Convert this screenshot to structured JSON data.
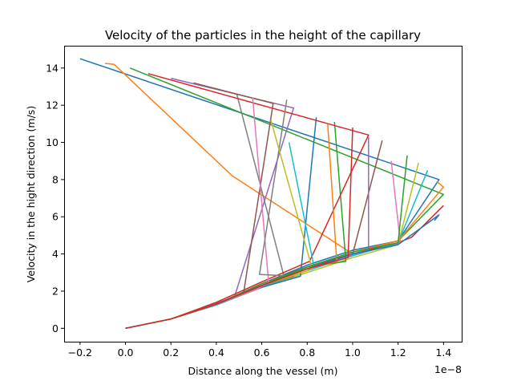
{
  "chart_data": {
    "type": "line",
    "title": "Velocity of the particles in the height of the capillary",
    "xlabel": "Distance along the vessel (m)",
    "ylabel": "Velocity in the hight direction (m/s)",
    "x_offset_text": "1e−8",
    "xlim": [
      -0.27,
      1.48
    ],
    "ylim": [
      -0.72,
      15.2
    ],
    "x_scale_factor": 1e-08,
    "xticks": [
      -0.2,
      0.0,
      0.2,
      0.4,
      0.6,
      0.8,
      1.0,
      1.2,
      1.4
    ],
    "xtick_labels": [
      "−0.2",
      "0.0",
      "0.2",
      "0.4",
      "0.6",
      "0.8",
      "1.0",
      "1.2",
      "1.4"
    ],
    "yticks": [
      0,
      2,
      4,
      6,
      8,
      10,
      12,
      14
    ],
    "ytick_labels": [
      "0",
      "2",
      "4",
      "6",
      "8",
      "10",
      "12",
      "14"
    ],
    "grid": false,
    "legend": "none",
    "series": [
      {
        "color": "#1f77b4",
        "points": [
          [
            0,
            0
          ],
          [
            0.2,
            0.5
          ],
          [
            0.4,
            1.3
          ],
          [
            0.6,
            2.4
          ],
          [
            0.8,
            3.4
          ],
          [
            1.0,
            4.2
          ],
          [
            1.2,
            4.7
          ],
          [
            1.38,
            8.0
          ],
          [
            -0.2,
            14.5
          ]
        ]
      },
      {
        "color": "#ff7f0e",
        "points": [
          [
            0,
            0
          ],
          [
            0.2,
            0.5
          ],
          [
            0.4,
            1.3
          ],
          [
            0.6,
            2.3
          ],
          [
            0.8,
            3.3
          ],
          [
            1.0,
            4.1
          ],
          [
            1.2,
            4.7
          ],
          [
            1.0,
            4.0
          ],
          [
            0.47,
            8.2
          ],
          [
            -0.05,
            14.2
          ],
          [
            -0.09,
            14.25
          ]
        ]
      },
      {
        "color": "#2ca02c",
        "points": [
          [
            0,
            0
          ],
          [
            0.2,
            0.5
          ],
          [
            0.4,
            1.3
          ],
          [
            0.6,
            2.3
          ],
          [
            0.8,
            3.3
          ],
          [
            1.0,
            4.1
          ],
          [
            1.2,
            4.7
          ],
          [
            1.4,
            7.2
          ],
          [
            0.02,
            14.0
          ]
        ]
      },
      {
        "color": "#d62728",
        "points": [
          [
            0,
            0
          ],
          [
            0.2,
            0.5
          ],
          [
            0.4,
            1.3
          ],
          [
            0.6,
            2.4
          ],
          [
            0.8,
            3.3
          ],
          [
            1.0,
            4.0
          ],
          [
            1.2,
            4.6
          ],
          [
            1.26,
            4.9
          ],
          [
            1.4,
            6.6
          ]
        ]
      },
      {
        "color": "#9467bd",
        "points": [
          [
            0,
            0
          ],
          [
            0.2,
            0.5
          ],
          [
            0.4,
            1.35
          ],
          [
            0.48,
            1.7
          ],
          [
            0.74,
            11.85
          ],
          [
            0.2,
            13.45
          ]
        ]
      },
      {
        "color": "#8c564b",
        "points": [
          [
            0,
            0
          ],
          [
            0.2,
            0.5
          ],
          [
            0.4,
            1.3
          ],
          [
            0.6,
            2.3
          ],
          [
            0.8,
            3.2
          ],
          [
            1.0,
            4.0
          ],
          [
            1.13,
            10.1
          ]
        ]
      },
      {
        "color": "#e377c2",
        "points": [
          [
            0,
            0
          ],
          [
            0.2,
            0.5
          ],
          [
            0.4,
            1.3
          ],
          [
            0.6,
            2.3
          ],
          [
            0.8,
            3.2
          ],
          [
            1.0,
            3.95
          ],
          [
            1.2,
            4.55
          ],
          [
            1.21,
            4.6
          ],
          [
            1.17,
            9.0
          ]
        ]
      },
      {
        "color": "#7f7f7f",
        "points": [
          [
            0,
            0
          ],
          [
            0.2,
            0.5
          ],
          [
            0.4,
            1.3
          ],
          [
            0.6,
            2.2
          ],
          [
            0.7,
            2.7
          ],
          [
            0.49,
            12.6
          ]
        ]
      },
      {
        "color": "#bcbd22",
        "points": [
          [
            0,
            0
          ],
          [
            0.2,
            0.5
          ],
          [
            0.4,
            1.25
          ],
          [
            0.6,
            2.2
          ],
          [
            0.8,
            3.0
          ],
          [
            1.0,
            3.8
          ],
          [
            1.2,
            4.5
          ],
          [
            1.29,
            8.9
          ]
        ]
      },
      {
        "color": "#17becf",
        "points": [
          [
            0,
            0
          ],
          [
            0.2,
            0.5
          ],
          [
            0.4,
            1.25
          ],
          [
            0.6,
            2.2
          ],
          [
            0.8,
            3.1
          ],
          [
            1.0,
            3.9
          ],
          [
            1.2,
            4.6
          ],
          [
            1.33,
            8.5
          ]
        ]
      },
      {
        "color": "#1f77b4",
        "points": [
          [
            0,
            0
          ],
          [
            0.2,
            0.5
          ],
          [
            0.4,
            1.3
          ],
          [
            0.6,
            2.2
          ],
          [
            0.77,
            2.8
          ],
          [
            0.84,
            11.35
          ]
        ]
      },
      {
        "color": "#ff7f0e",
        "points": [
          [
            0,
            0
          ],
          [
            0.2,
            0.5
          ],
          [
            0.4,
            1.3
          ],
          [
            0.6,
            2.3
          ],
          [
            0.8,
            3.3
          ],
          [
            1.0,
            4.1
          ],
          [
            1.2,
            4.7
          ],
          [
            1.4,
            7.6
          ],
          [
            1.37,
            7.9
          ]
        ]
      },
      {
        "color": "#2ca02c",
        "points": [
          [
            0,
            0
          ],
          [
            0.2,
            0.5
          ],
          [
            0.4,
            1.3
          ],
          [
            0.6,
            2.4
          ],
          [
            0.8,
            3.3
          ],
          [
            0.97,
            3.6
          ],
          [
            0.92,
            11.1
          ]
        ]
      },
      {
        "color": "#d62728",
        "points": [
          [
            0,
            0
          ],
          [
            0.2,
            0.5
          ],
          [
            0.4,
            1.4
          ],
          [
            0.6,
            2.5
          ],
          [
            0.81,
            3.6
          ],
          [
            1.07,
            10.4
          ],
          [
            0.1,
            13.7
          ]
        ]
      },
      {
        "color": "#9467bd",
        "points": [
          [
            0,
            0
          ],
          [
            0.2,
            0.5
          ],
          [
            0.4,
            1.3
          ],
          [
            0.6,
            2.3
          ],
          [
            0.8,
            3.2
          ],
          [
            1.0,
            4.0
          ],
          [
            1.07,
            4.2
          ],
          [
            1.07,
            10.3
          ]
        ]
      },
      {
        "color": "#8c564b",
        "points": [
          [
            0,
            0
          ],
          [
            0.2,
            0.5
          ],
          [
            0.4,
            1.3
          ],
          [
            0.52,
            1.9
          ],
          [
            0.65,
            12.1
          ],
          [
            0.3,
            13.2
          ]
        ]
      },
      {
        "color": "#e377c2",
        "points": [
          [
            0,
            0
          ],
          [
            0.2,
            0.5
          ],
          [
            0.4,
            1.3
          ],
          [
            0.58,
            2.1
          ],
          [
            0.63,
            2.5
          ],
          [
            0.56,
            12.4
          ]
        ]
      },
      {
        "color": "#7f7f7f",
        "points": [
          [
            0,
            0
          ],
          [
            0.2,
            0.5
          ],
          [
            0.4,
            1.3
          ],
          [
            0.6,
            2.3
          ],
          [
            0.74,
            2.8
          ],
          [
            0.59,
            2.9
          ],
          [
            0.71,
            12.3
          ]
        ]
      },
      {
        "color": "#bcbd22",
        "points": [
          [
            0,
            0
          ],
          [
            0.2,
            0.5
          ],
          [
            0.4,
            1.3
          ],
          [
            0.6,
            2.3
          ],
          [
            0.8,
            3.1
          ],
          [
            0.82,
            3.3
          ],
          [
            0.64,
            11.2
          ]
        ]
      },
      {
        "color": "#17becf",
        "points": [
          [
            0,
            0
          ],
          [
            0.2,
            0.5
          ],
          [
            0.4,
            1.3
          ],
          [
            0.6,
            2.3
          ],
          [
            0.8,
            3.2
          ],
          [
            0.83,
            3.3
          ],
          [
            0.72,
            10.0
          ]
        ]
      },
      {
        "color": "#1f77b4",
        "points": [
          [
            0,
            0
          ],
          [
            0.2,
            0.5
          ],
          [
            0.4,
            1.3
          ],
          [
            0.6,
            2.3
          ],
          [
            0.8,
            3.2
          ],
          [
            1.0,
            4.0
          ],
          [
            1.2,
            4.5
          ],
          [
            1.38,
            6.1
          ],
          [
            1.36,
            5.8
          ]
        ]
      },
      {
        "color": "#ff7f0e",
        "points": [
          [
            0,
            0
          ],
          [
            0.2,
            0.5
          ],
          [
            0.4,
            1.3
          ],
          [
            0.6,
            2.3
          ],
          [
            0.8,
            3.2
          ],
          [
            0.93,
            3.6
          ],
          [
            0.89,
            11.0
          ]
        ]
      },
      {
        "color": "#2ca02c",
        "points": [
          [
            0,
            0
          ],
          [
            0.2,
            0.5
          ],
          [
            0.4,
            1.3
          ],
          [
            0.6,
            2.3
          ],
          [
            0.8,
            3.3
          ],
          [
            1.0,
            4.1
          ],
          [
            1.2,
            4.6
          ],
          [
            1.24,
            9.3
          ]
        ]
      },
      {
        "color": "#d62728",
        "points": [
          [
            0,
            0
          ],
          [
            0.2,
            0.5
          ],
          [
            0.4,
            1.3
          ],
          [
            0.6,
            2.3
          ],
          [
            0.8,
            3.2
          ],
          [
            0.98,
            3.8
          ],
          [
            1.0,
            10.8
          ]
        ]
      }
    ]
  }
}
